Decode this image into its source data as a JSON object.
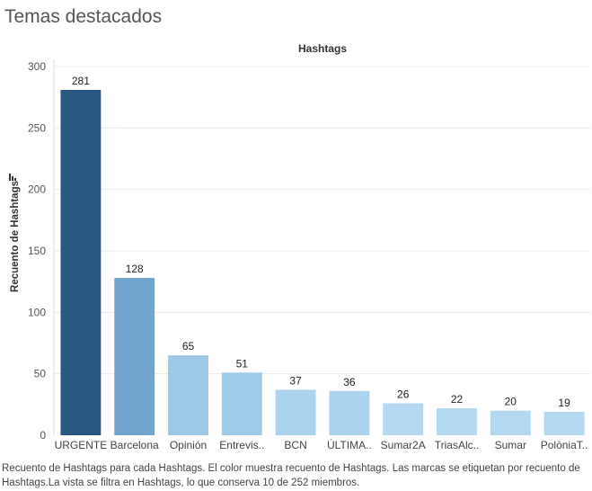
{
  "page_title": "Temas destacados",
  "chart_data": {
    "type": "bar",
    "header": "Hashtags",
    "ylabel": "Recuento de Hashtags",
    "xlabel": "",
    "ylim": [
      0,
      300
    ],
    "yticks": [
      0,
      50,
      100,
      150,
      200,
      250,
      300
    ],
    "categories": [
      "URGENTE",
      "Barcelona",
      "Opinión",
      "Entrevis..",
      "BCN",
      "ÚLTIMA..",
      "Sumar2A",
      "TriasAlc..",
      "Sumar",
      "PolòniaT.."
    ],
    "values": [
      281,
      128,
      65,
      51,
      37,
      36,
      26,
      22,
      20,
      19
    ],
    "colors": [
      "#2b5783",
      "#72a5cd",
      "#9dc9e6",
      "#a0cbe8",
      "#acd3ee",
      "#acd3ee",
      "#b3d8f0",
      "#b3d8f0",
      "#b3d8f0",
      "#b3d8f0"
    ],
    "grid": true,
    "sort_icon": "sort-descending-icon"
  },
  "caption": "Recuento de Hashtags para cada Hashtags. El color muestra recuento de Hashtags. Las marcas se etiquetan por recuento de Hashtags.La vista se filtra en Hashtags, lo que conserva 10 de 252 miembros."
}
